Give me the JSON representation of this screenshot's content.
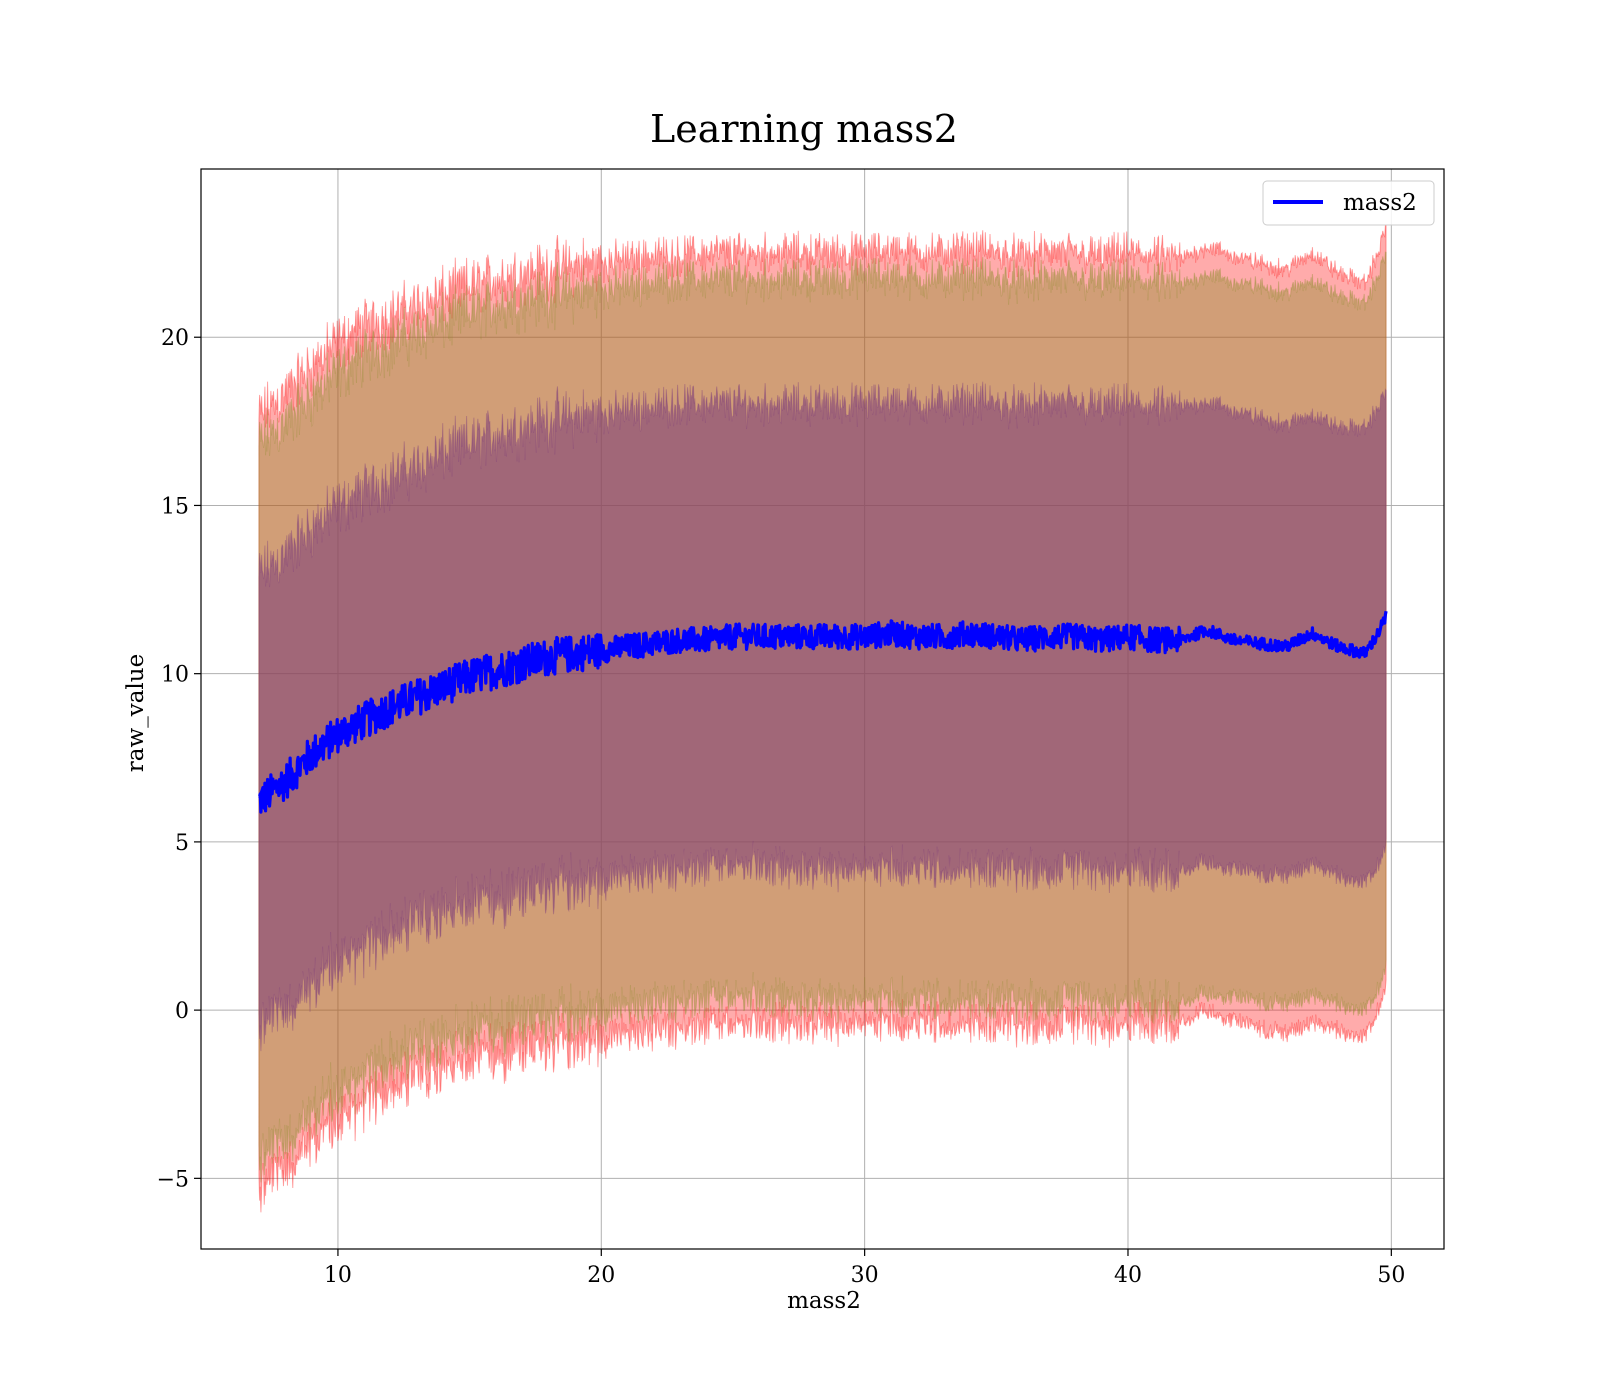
{
  "chart_data": {
    "type": "line",
    "title": "Learning mass2",
    "xlabel": "mass2",
    "ylabel": "raw_value",
    "xlim": [
      4.8,
      52.0
    ],
    "ylim": [
      -7.1,
      25.0
    ],
    "xticks": [
      10,
      20,
      30,
      40,
      50
    ],
    "yticks": [
      -5,
      0,
      5,
      10,
      15,
      20
    ],
    "xtick_labels": [
      "10",
      "20",
      "30",
      "40",
      "50"
    ],
    "ytick_labels": [
      "−5",
      "0",
      "5",
      "10",
      "15",
      "20"
    ],
    "grid": true,
    "legend": {
      "position": "upper right",
      "entries": [
        "mass2"
      ]
    },
    "colors": {
      "mean_line": "#0000ff",
      "band_outer": "#ff0000",
      "band_middle": "#8b8b2a",
      "band_inner": "#7a3a7a"
    },
    "series": [
      {
        "name": "mass2",
        "x": [
          7,
          8,
          9,
          10,
          11,
          12,
          13,
          14,
          15,
          16,
          17,
          18,
          19,
          20,
          21,
          22,
          23,
          24,
          25,
          26,
          27,
          28,
          29,
          30,
          31,
          32,
          33,
          34,
          35,
          36,
          37,
          38,
          39,
          40,
          41,
          42,
          43,
          44,
          45,
          46,
          47,
          48,
          49,
          49.5,
          49.8
        ],
        "mean": [
          6.2,
          6.8,
          7.6,
          8.2,
          8.6,
          9.0,
          9.3,
          9.6,
          9.9,
          10.1,
          10.3,
          10.5,
          10.6,
          10.7,
          10.8,
          10.9,
          11.0,
          11.0,
          11.1,
          11.1,
          11.1,
          11.1,
          11.1,
          11.1,
          11.2,
          11.1,
          11.1,
          11.2,
          11.1,
          11.0,
          11.1,
          11.1,
          11.0,
          11.1,
          11.0,
          11.0,
          11.3,
          11.0,
          10.9,
          10.8,
          11.2,
          10.8,
          10.6,
          11.2,
          11.7
        ]
      }
    ],
    "bands": [
      {
        "sigma": 1,
        "upper": [
          12.9,
          13.5,
          14.3,
          14.9,
          15.4,
          15.8,
          16.1,
          16.5,
          16.8,
          17.1,
          17.3,
          17.5,
          17.6,
          17.7,
          17.8,
          17.9,
          18.0,
          18.0,
          18.0,
          18.0,
          18.0,
          18.0,
          18.0,
          18.0,
          18.1,
          18.0,
          18.0,
          18.1,
          18.0,
          17.9,
          18.0,
          18.0,
          17.9,
          18.0,
          17.9,
          17.9,
          18.1,
          17.8,
          17.6,
          17.4,
          17.7,
          17.3,
          17.3,
          17.9,
          18.4
        ],
        "lower": [
          -0.5,
          0.1,
          0.8,
          1.5,
          1.9,
          2.3,
          2.6,
          2.9,
          3.1,
          3.3,
          3.5,
          3.7,
          3.8,
          3.9,
          4.0,
          4.1,
          4.2,
          4.2,
          4.3,
          4.3,
          4.2,
          4.2,
          4.2,
          4.3,
          4.3,
          4.2,
          4.2,
          4.3,
          4.2,
          4.1,
          4.2,
          4.2,
          4.1,
          4.2,
          4.1,
          4.1,
          4.4,
          4.2,
          4.1,
          4.0,
          4.4,
          4.0,
          3.8,
          4.3,
          4.8
        ]
      },
      {
        "sigma": 2,
        "upper": [
          16.8,
          17.4,
          18.2,
          18.9,
          19.4,
          19.8,
          20.1,
          20.4,
          20.7,
          20.9,
          21.1,
          21.2,
          21.3,
          21.4,
          21.5,
          21.6,
          21.7,
          21.7,
          21.7,
          21.7,
          21.7,
          21.7,
          21.7,
          21.8,
          21.8,
          21.7,
          21.7,
          21.8,
          21.7,
          21.6,
          21.7,
          21.7,
          21.6,
          21.7,
          21.6,
          21.5,
          21.9,
          21.6,
          21.5,
          21.3,
          21.7,
          21.2,
          21.0,
          21.8,
          22.5
        ],
        "lower": [
          -4.4,
          -3.8,
          -3.0,
          -2.4,
          -1.9,
          -1.5,
          -1.2,
          -0.9,
          -0.7,
          -0.5,
          -0.3,
          -0.2,
          -0.1,
          0.0,
          0.1,
          0.2,
          0.3,
          0.3,
          0.4,
          0.4,
          0.3,
          0.3,
          0.3,
          0.4,
          0.4,
          0.3,
          0.3,
          0.4,
          0.3,
          0.2,
          0.3,
          0.3,
          0.2,
          0.3,
          0.2,
          0.2,
          0.5,
          0.4,
          0.3,
          0.2,
          0.5,
          0.2,
          0.0,
          0.6,
          1.2
        ]
      },
      {
        "sigma": 3,
        "upper": [
          17.6,
          18.3,
          19.1,
          19.8,
          20.3,
          20.6,
          20.9,
          21.2,
          21.5,
          21.7,
          21.9,
          22.0,
          22.1,
          22.2,
          22.3,
          22.4,
          22.4,
          22.5,
          22.5,
          22.5,
          22.5,
          22.5,
          22.5,
          22.5,
          22.6,
          22.5,
          22.5,
          22.6,
          22.5,
          22.4,
          22.5,
          22.5,
          22.4,
          22.5,
          22.4,
          22.3,
          22.7,
          22.4,
          22.2,
          22.0,
          22.5,
          21.9,
          21.6,
          22.5,
          23.3
        ],
        "lower": [
          -5.3,
          -4.6,
          -3.8,
          -3.2,
          -2.7,
          -2.3,
          -2.0,
          -1.7,
          -1.5,
          -1.3,
          -1.1,
          -1.0,
          -0.9,
          -0.8,
          -0.7,
          -0.6,
          -0.5,
          -0.5,
          -0.4,
          -0.4,
          -0.4,
          -0.4,
          -0.4,
          -0.3,
          -0.3,
          -0.4,
          -0.4,
          -0.3,
          -0.4,
          -0.5,
          -0.4,
          -0.4,
          -0.5,
          -0.4,
          -0.4,
          -0.4,
          0.0,
          -0.3,
          -0.5,
          -0.7,
          -0.3,
          -0.6,
          -0.8,
          0.0,
          0.6
        ]
      }
    ]
  }
}
